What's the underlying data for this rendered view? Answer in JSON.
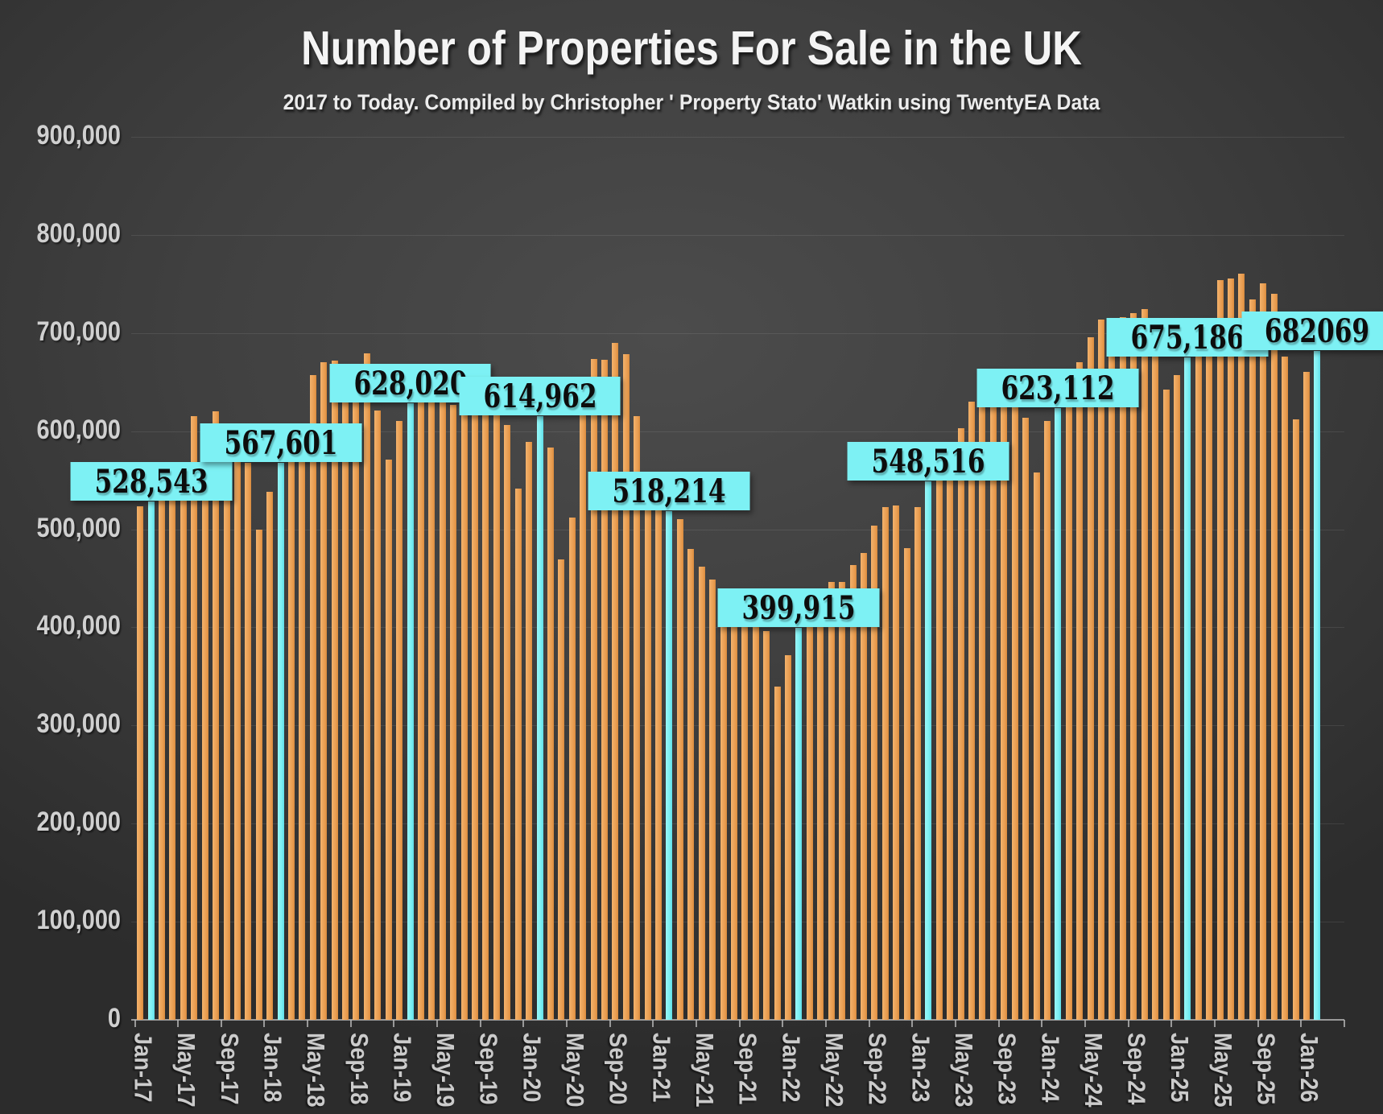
{
  "title": "Number of Properties For Sale in the UK",
  "subtitle": "2017 to Today. Compiled by Christopher ' Property Stato' Watkin using TwentyEA Data",
  "chart_data": {
    "type": "bar",
    "title": "Number of Properties For Sale in the UK",
    "subtitle": "2017 to Today. Compiled by Christopher ' Property Stato' Watkin using TwentyEA Data",
    "xlabel": "",
    "ylabel": "",
    "ylim": [
      0,
      900000
    ],
    "ytick_step": 100000,
    "ytick_labels": [
      "0",
      "100,000",
      "200,000",
      "300,000",
      "400,000",
      "500,000",
      "600,000",
      "700,000",
      "800,000",
      "900,000"
    ],
    "xtick_label_every": 4,
    "grid": true,
    "legend": "none",
    "bar_color": "#E89C4F",
    "highlight_color": "#7DF1F4",
    "highlight_note": "February of each year shown in cyan with value callout",
    "x": [
      "Jan-17",
      "Feb-17",
      "Mar-17",
      "Apr-17",
      "May-17",
      "Jun-17",
      "Jul-17",
      "Aug-17",
      "Sep-17",
      "Oct-17",
      "Nov-17",
      "Dec-17",
      "Jan-18",
      "Feb-18",
      "Mar-18",
      "Apr-18",
      "May-18",
      "Jun-18",
      "Jul-18",
      "Aug-18",
      "Sep-18",
      "Oct-18",
      "Nov-18",
      "Dec-18",
      "Jan-19",
      "Feb-19",
      "Mar-19",
      "Apr-19",
      "May-19",
      "Jun-19",
      "Jul-19",
      "Aug-19",
      "Sep-19",
      "Oct-19",
      "Nov-19",
      "Dec-19",
      "Jan-20",
      "Feb-20",
      "Mar-20",
      "Apr-20",
      "May-20",
      "Jun-20",
      "Jul-20",
      "Aug-20",
      "Sep-20",
      "Oct-20",
      "Nov-20",
      "Dec-20",
      "Jan-21",
      "Feb-21",
      "Mar-21",
      "Apr-21",
      "May-21",
      "Jun-21",
      "Jul-21",
      "Aug-21",
      "Sep-21",
      "Oct-21",
      "Nov-21",
      "Dec-21",
      "Jan-22",
      "Feb-22",
      "Mar-22",
      "Apr-22",
      "May-22",
      "Jun-22",
      "Jul-22",
      "Aug-22",
      "Sep-22",
      "Oct-22",
      "Nov-22",
      "Dec-22",
      "Jan-23",
      "Feb-23",
      "Mar-23",
      "Apr-23",
      "May-23",
      "Jun-23",
      "Jul-23",
      "Aug-23",
      "Sep-23",
      "Oct-23",
      "Nov-23",
      "Dec-23",
      "Jan-24",
      "Feb-24",
      "Mar-24",
      "Apr-24",
      "May-24",
      "Jun-24",
      "Jul-24",
      "Aug-24",
      "Sep-24",
      "Oct-24",
      "Nov-24",
      "Dec-24",
      "Jan-25",
      "Feb-25",
      "Mar-25",
      "Apr-25",
      "May-25",
      "Jun-25",
      "Jul-25",
      "Aug-25",
      "Sep-25",
      "Oct-25",
      "Nov-25",
      "Dec-25",
      "Jan-26",
      "Feb-26"
    ],
    "values": [
      523000,
      528543,
      530500,
      530500,
      530500,
      615500,
      591000,
      620000,
      598000,
      578000,
      568000,
      499500,
      538100,
      567601,
      569500,
      590000,
      657500,
      670000,
      672000,
      665300,
      668000,
      679000,
      621000,
      571000,
      610500,
      628020,
      632000,
      636000,
      640000,
      627000,
      628000,
      649100,
      648000,
      618000,
      606400,
      541700,
      589000,
      614962,
      583300,
      469200,
      511600,
      638000,
      673700,
      672400,
      689600,
      678400,
      615500,
      548000,
      543000,
      518214,
      510000,
      480200,
      461900,
      448700,
      430100,
      427000,
      412000,
      405000,
      396000,
      339800,
      371600,
      399915,
      406000,
      422000,
      446000,
      446000,
      463700,
      475500,
      503900,
      522600,
      524400,
      480700,
      522600,
      548516,
      556000,
      568000,
      603200,
      629800,
      634700,
      643700,
      650000,
      653000,
      614000,
      558000,
      610500,
      623112,
      648000,
      670200,
      695700,
      713400,
      707700,
      716000,
      720200,
      724100,
      676100,
      642300,
      657400,
      675186,
      702000,
      712000,
      754100,
      755600,
      760500,
      734500,
      751000,
      740000,
      676200,
      612200,
      660600,
      682069
    ],
    "highlight_indices": [
      1,
      13,
      25,
      37,
      49,
      61,
      73,
      85,
      97,
      109
    ],
    "callouts": [
      {
        "index": 1,
        "label": "528,543"
      },
      {
        "index": 13,
        "label": "567,601"
      },
      {
        "index": 25,
        "label": "628,020"
      },
      {
        "index": 37,
        "label": "614,962"
      },
      {
        "index": 49,
        "label": "518,214"
      },
      {
        "index": 61,
        "label": "399,915"
      },
      {
        "index": 73,
        "label": "548,516"
      },
      {
        "index": 85,
        "label": "623,112"
      },
      {
        "index": 97,
        "label": "675,186"
      },
      {
        "index": 109,
        "label": "682069"
      }
    ]
  }
}
